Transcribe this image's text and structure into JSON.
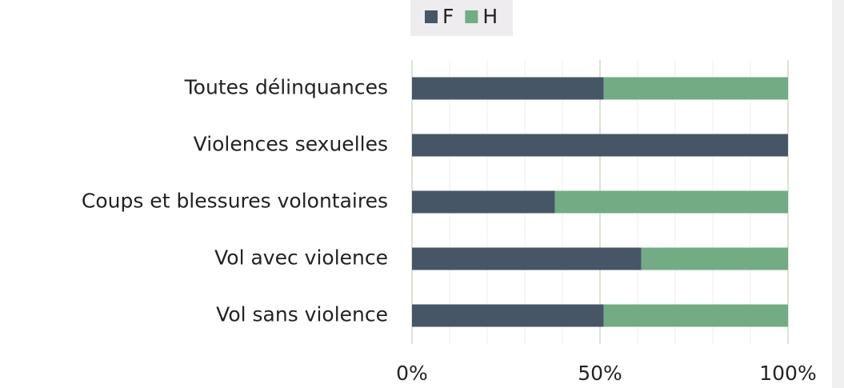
{
  "chart_data": {
    "type": "bar",
    "orientation": "horizontal",
    "stacked": true,
    "categories": [
      "Toutes délinquances",
      "Violences sexuelles",
      "Coups et blessures volontaires",
      "Vol avec violence",
      "Vol sans violence"
    ],
    "series": [
      {
        "name": "F",
        "color": "#475666",
        "values": [
          51,
          100,
          38,
          61,
          51
        ]
      },
      {
        "name": "H",
        "color": "#72ab84",
        "values": [
          49,
          0,
          62,
          39,
          49
        ]
      }
    ],
    "xlim": [
      0,
      100
    ],
    "xticks": [
      {
        "value": 0,
        "label": "0%"
      },
      {
        "value": 50,
        "label": "50%"
      },
      {
        "value": 100,
        "label": "100%"
      }
    ],
    "minor_grid": [
      10,
      20,
      30,
      40,
      60,
      70,
      80,
      90
    ],
    "grid": true,
    "legend": "top"
  }
}
